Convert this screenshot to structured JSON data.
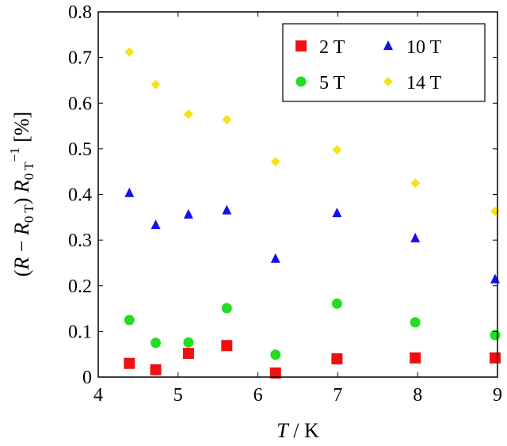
{
  "chart_data": {
    "type": "scatter",
    "title": "",
    "xlabel": "T / K",
    "xlabel_parts": {
      "var": "T",
      "unit": " / K"
    },
    "ylabel": "(R − R0T) R0T^−1 [%]",
    "ylabel_parts": {
      "a": "(",
      "R": "R",
      "minus": " − ",
      "R2": "R",
      "sub": "0 T",
      "close": ") ",
      "R3": "R",
      "sub2": "0 T",
      "sup": "−1",
      "unit": "  [%]"
    },
    "xlim": [
      4,
      9
    ],
    "ylim": [
      0,
      0.8
    ],
    "xticks": [
      "4",
      "5",
      "6",
      "7",
      "8",
      "9"
    ],
    "yticks": [
      "0",
      "0.1",
      "0.2",
      "0.3",
      "0.4",
      "0.5",
      "0.6",
      "0.7",
      "0.8"
    ],
    "legend_position": "top-right",
    "x": [
      4.39,
      4.72,
      5.13,
      5.61,
      6.22,
      6.99,
      7.97,
      8.97
    ],
    "series": [
      {
        "name": "2 T",
        "marker": "square",
        "color": "#ee1111",
        "values": [
          0.03,
          0.016,
          0.052,
          0.069,
          0.009,
          0.04,
          0.042,
          0.042
        ]
      },
      {
        "name": "5 T",
        "marker": "circle",
        "color": "#22dd22",
        "values": [
          0.125,
          0.075,
          0.076,
          0.151,
          0.049,
          0.161,
          0.12,
          0.092
        ]
      },
      {
        "name": "10 T",
        "marker": "triangle",
        "color": "#1111ee",
        "values": [
          0.403,
          0.333,
          0.356,
          0.365,
          0.259,
          0.359,
          0.304,
          0.214
        ]
      },
      {
        "name": "14 T",
        "marker": "diamond",
        "color": "#f5e31a",
        "values": [
          0.712,
          0.641,
          0.576,
          0.564,
          0.472,
          0.498,
          0.425,
          0.363
        ]
      }
    ]
  }
}
